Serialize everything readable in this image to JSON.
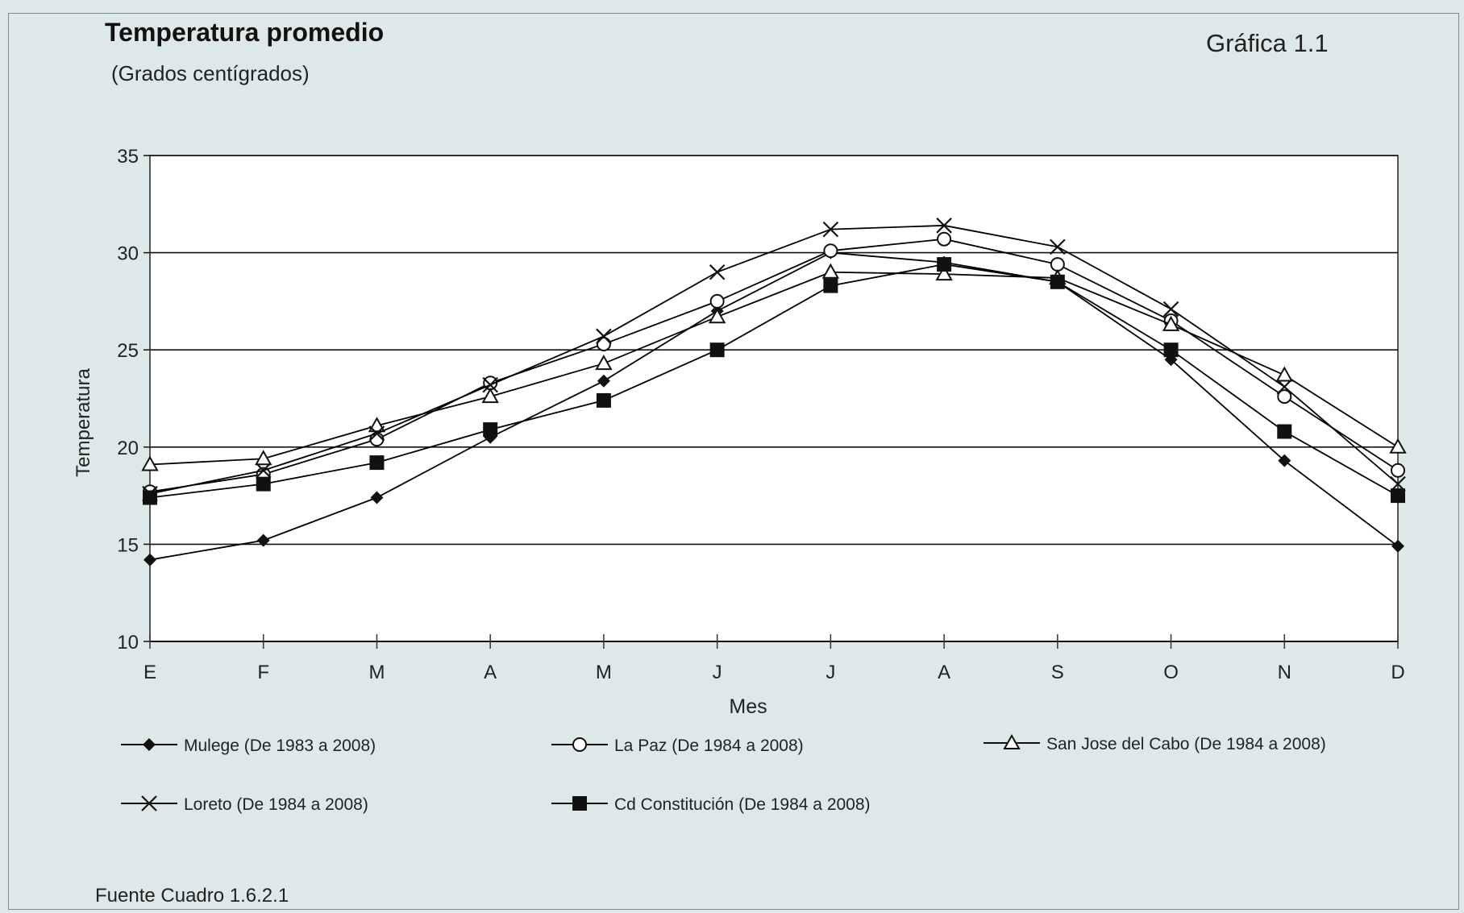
{
  "header": {
    "title": "Temperatura promedio",
    "subtitle": "(Grados centígrados)",
    "figure_label": "Gráfica 1.1"
  },
  "footer": {
    "source": "Fuente Cuadro 1.6.2.1"
  },
  "colors": {
    "background": "#dde9e9",
    "plot_area": "#ffffff",
    "series_line": "#000000"
  },
  "chart_data": {
    "type": "line",
    "title": "Temperatura promedio",
    "subtitle": "(Grados centígrados)",
    "xlabel": "Mes",
    "ylabel": "Temperatura",
    "categories": [
      "E",
      "F",
      "M",
      "A",
      "M",
      "J",
      "J",
      "A",
      "S",
      "O",
      "N",
      "D"
    ],
    "ylim": [
      10,
      35
    ],
    "yticks": [
      10,
      15,
      20,
      25,
      30,
      35
    ],
    "grid": "horizontal",
    "legend_position": "bottom",
    "series": [
      {
        "name": "Mulege (De 1983 a 2008)",
        "marker": "diamond",
        "values": [
          14.2,
          15.2,
          17.4,
          20.5,
          23.4,
          27.0,
          30.0,
          29.5,
          28.5,
          24.5,
          19.3,
          14.9
        ]
      },
      {
        "name": "La Paz (De 1984 a 2008)",
        "marker": "circle",
        "values": [
          17.7,
          18.6,
          20.4,
          23.3,
          25.3,
          27.5,
          30.1,
          30.7,
          29.4,
          26.5,
          22.6,
          18.8
        ]
      },
      {
        "name": "San Jose del Cabo  (De 1984 a 2008)",
        "marker": "triangle",
        "values": [
          19.1,
          19.4,
          21.1,
          22.6,
          24.3,
          26.7,
          29.0,
          28.9,
          28.7,
          26.3,
          23.7,
          20.0
        ]
      },
      {
        "name": "Loreto (De 1984 a 2008)",
        "marker": "x",
        "values": [
          17.6,
          18.8,
          20.7,
          23.2,
          25.7,
          29.0,
          31.2,
          31.4,
          30.3,
          27.1,
          23.1,
          18.1
        ]
      },
      {
        "name": "Cd  Constitución (De 1984 a 2008)",
        "marker": "square",
        "values": [
          17.4,
          18.1,
          19.2,
          20.9,
          22.4,
          25.0,
          28.3,
          29.4,
          28.5,
          25.0,
          20.8,
          17.5
        ]
      }
    ]
  }
}
